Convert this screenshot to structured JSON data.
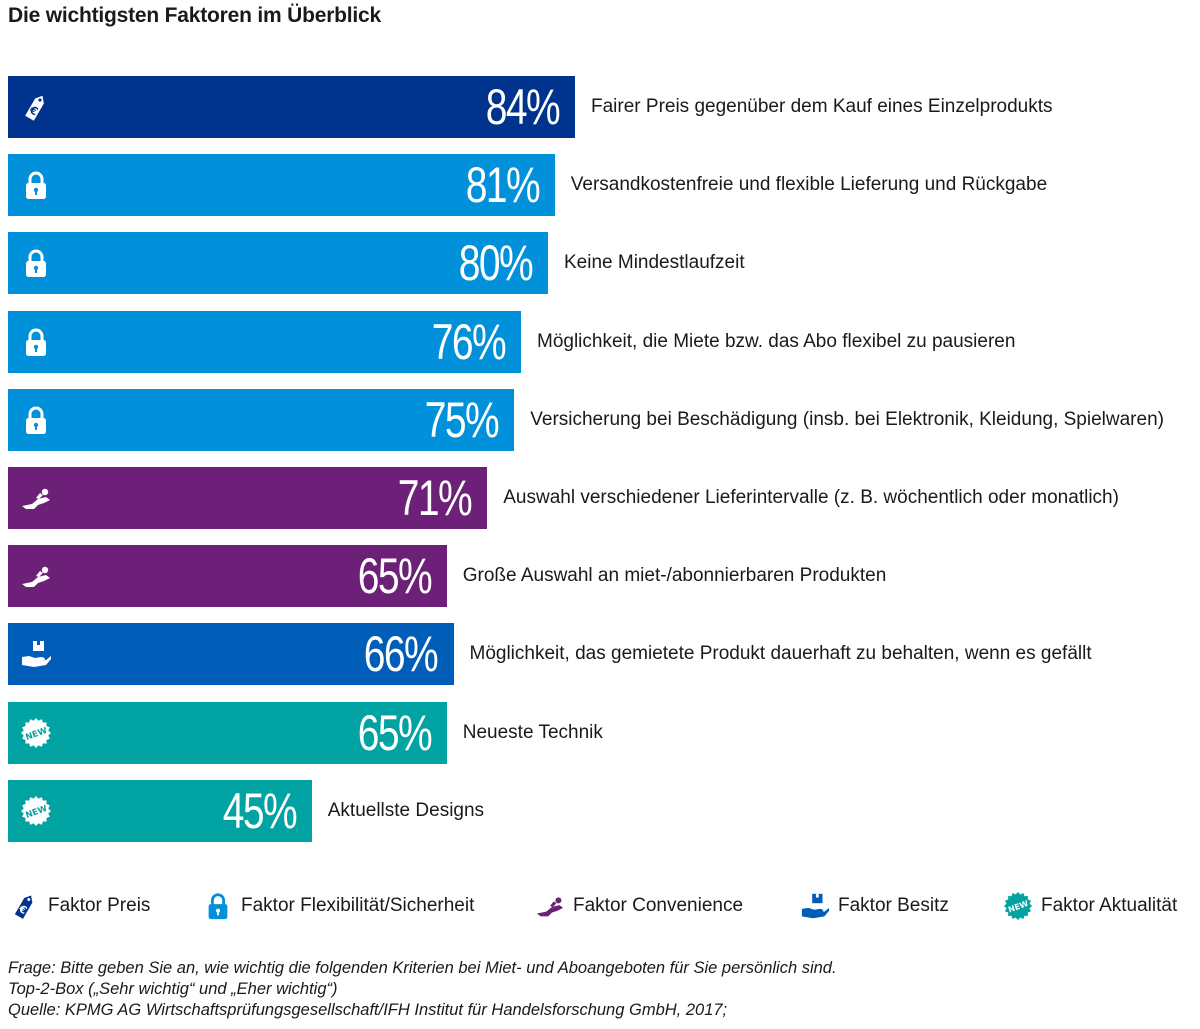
{
  "title": "Die wichtigsten Faktoren im Überblick",
  "colors": {
    "preis": "#00338d",
    "flex": "#0091da",
    "convenience": "#6d2077",
    "besitz": "#005eb8",
    "aktualitaet": "#00a3a1"
  },
  "chart_data": {
    "type": "bar",
    "orientation": "horizontal",
    "title": "Die wichtigsten Faktoren im Überblick",
    "unit": "%",
    "xlim": [
      0,
      100
    ],
    "grid": false,
    "legend_position": "bottom",
    "categories": [
      "Fairer Preis gegenüber dem Kauf eines Einzelprodukts",
      "Versandkostenfreie und flexible Lieferung und Rückgabe",
      "Keine Mindestlaufzeit",
      "Möglichkeit, die Miete bzw. das Abo flexibel zu pausieren",
      "Versicherung bei Beschädigung (insb. bei Elektronik, Kleidung, Spielwaren)",
      "Auswahl verschiedener Lieferintervalle (z. B. wöchentlich oder monatlich)",
      "Große Auswahl an miet-/abonnierbaren Produkten",
      "Möglichkeit, das gemietete Produkt dauerhaft zu behalten, wenn es gefällt",
      "Neueste Technik",
      "Aktuellste Designs"
    ],
    "values": [
      84,
      81,
      80,
      76,
      75,
      71,
      65,
      66,
      65,
      45
    ],
    "value_labels": [
      "84%",
      "81%",
      "80%",
      "76%",
      "75%",
      "71%",
      "65%",
      "66%",
      "65%",
      "45%"
    ],
    "factors": [
      "preis",
      "flex",
      "flex",
      "flex",
      "flex",
      "convenience",
      "convenience",
      "besitz",
      "aktualitaet",
      "aktualitaet"
    ],
    "icons": [
      "euro-tag-icon",
      "padlock-icon",
      "padlock-icon",
      "padlock-icon",
      "padlock-icon",
      "reclining-person-icon",
      "reclining-person-icon",
      "hand-box-icon",
      "new-badge-icon",
      "new-badge-icon"
    ]
  },
  "legend": [
    {
      "key": "preis",
      "label": "Faktor Preis",
      "icon": "euro-tag-icon"
    },
    {
      "key": "flex",
      "label": "Faktor Flexibilität/Sicherheit",
      "icon": "padlock-icon"
    },
    {
      "key": "convenience",
      "label": "Faktor Convenience",
      "icon": "reclining-person-icon"
    },
    {
      "key": "besitz",
      "label": "Faktor Besitz",
      "icon": "hand-box-icon"
    },
    {
      "key": "aktualitaet",
      "label": "Faktor Aktualität",
      "icon": "new-badge-icon"
    }
  ],
  "new_badge_text": "NEW",
  "footer": {
    "question": "Frage: Bitte geben Sie an, wie wichtig die folgenden Kriterien bei Miet- und Aboangeboten für Sie persönlich sind.",
    "box": "Top-2-Box („Sehr wichtig“ und „Eher wichtig“)",
    "source": "Quelle: KPMG AG Wirtschaftsprüfungsgesellschaft/IFH Institut für Handelsforschung GmbH, 2017;"
  }
}
